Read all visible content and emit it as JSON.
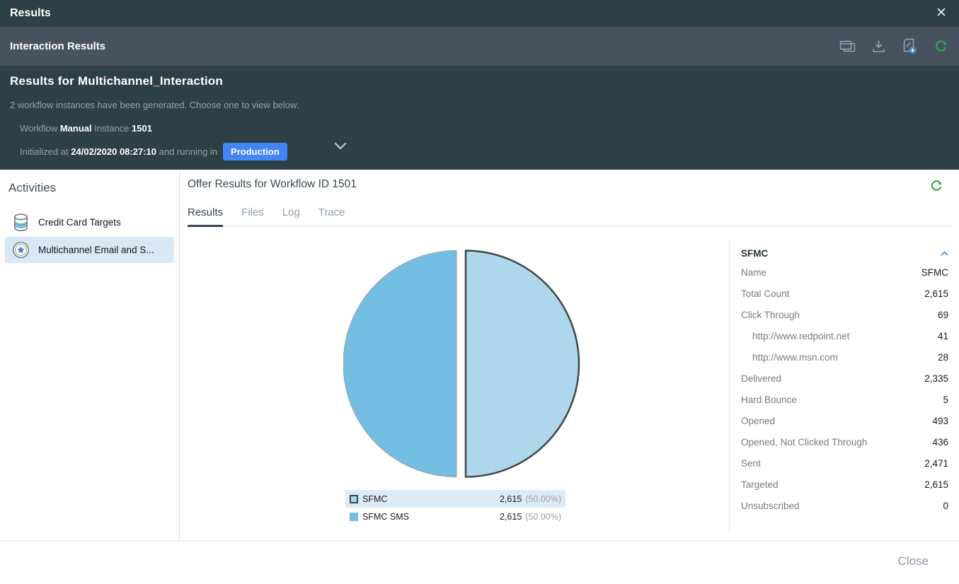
{
  "titlebar": {
    "title": "Results"
  },
  "toolbar": {
    "title": "Interaction Results",
    "icons": [
      {
        "name": "view-cards-icon"
      },
      {
        "name": "download-icon"
      },
      {
        "name": "export-report-icon"
      },
      {
        "name": "refresh-icon"
      }
    ]
  },
  "header": {
    "title": "Results for Multichannel_Interaction",
    "subtitle": "2 workflow instances have been generated. Choose one to view below.",
    "workflow_label": "Workflow",
    "workflow_value": "Manual",
    "instance_label": "Instance",
    "instance_value": "1501",
    "initialized_label": "Initialized at",
    "initialized_value": "24/02/2020 08:27:10",
    "running_label": "and running in",
    "environment": "Production"
  },
  "sidebar": {
    "title": "Activities",
    "items": [
      {
        "label": "Credit Card Targets",
        "icon": "database-icon",
        "selected": false
      },
      {
        "label": "Multichannel Email and S...",
        "icon": "target-star-icon",
        "selected": true
      }
    ]
  },
  "main": {
    "title": "Offer Results for Workflow ID 1501",
    "tabs": [
      {
        "label": "Results",
        "active": true
      },
      {
        "label": "Files",
        "active": false
      },
      {
        "label": "Log",
        "active": false
      },
      {
        "label": "Trace",
        "active": false
      }
    ]
  },
  "chart_data": {
    "type": "pie",
    "title": "Offer Results for Workflow ID 1501",
    "legend_position": "bottom",
    "slices": [
      {
        "label": "SFMC",
        "value": 2615,
        "percent": 50.0,
        "display_value": "2,615",
        "display_percent": "(50.00%)",
        "color": "#aed7ec",
        "border_color": "#3f464b",
        "selected": true
      },
      {
        "label": "SFMC SMS",
        "value": 2615,
        "percent": 50.0,
        "display_value": "2,615",
        "display_percent": "(50.00%)",
        "color": "#74bde3",
        "border_color": "#9aa0a4",
        "selected": false
      }
    ]
  },
  "details": {
    "title": "SFMC",
    "rows": [
      {
        "label": "Name",
        "value": "SFMC",
        "indent": false
      },
      {
        "label": "Total Count",
        "value": "2,615",
        "indent": false
      },
      {
        "label": "Click Through",
        "value": "69",
        "indent": false
      },
      {
        "label": "http://www.redpoint.net",
        "value": "41",
        "indent": true
      },
      {
        "label": "http://www.msn.com",
        "value": "28",
        "indent": true
      },
      {
        "label": "Delivered",
        "value": "2,335",
        "indent": false
      },
      {
        "label": "Hard Bounce",
        "value": "5",
        "indent": false
      },
      {
        "label": "Opened",
        "value": "493",
        "indent": false
      },
      {
        "label": "Opened, Not Clicked Through",
        "value": "436",
        "indent": false
      },
      {
        "label": "Sent",
        "value": "2,471",
        "indent": false
      },
      {
        "label": "Targeted",
        "value": "2,615",
        "indent": false
      },
      {
        "label": "Unsubscribed",
        "value": "0",
        "indent": false
      }
    ]
  },
  "footer": {
    "close_label": "Close"
  },
  "colors": {
    "titlebar_bg": "#2d4046",
    "toolbar_bg": "#48525f",
    "badge_blue": "#4285f4",
    "refresh_green": "#27a84e",
    "selected_row_bg": "#d9e8f6",
    "legend_highlight_bg": "#dcebf7"
  }
}
